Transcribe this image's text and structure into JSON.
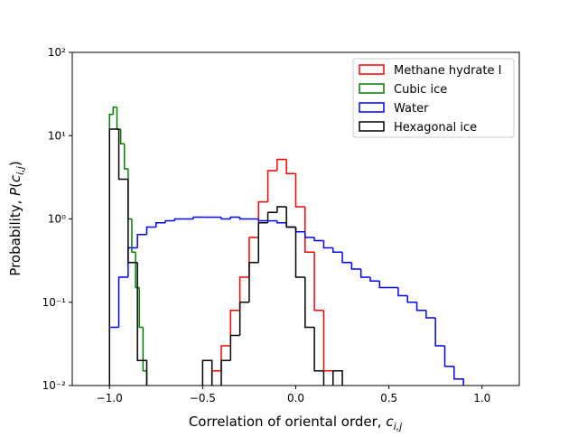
{
  "chart_data": {
    "type": "histogram",
    "histtype": "step",
    "xlabel": "Correlation of oriental order, ",
    "xlabel_var": "c",
    "xlabel_sub": "i,j",
    "ylabel": "Probability, ",
    "ylabel_var": "P",
    "ylabel_open": "(",
    "ylabel_var2": "c",
    "ylabel_sub": "i,j",
    "ylabel_close": ")",
    "yscale": "log",
    "xlim": [
      -1.2,
      1.2
    ],
    "ylim": [
      0.01,
      100
    ],
    "xticks": [
      {
        "value": -1.0,
        "label": "−1.0"
      },
      {
        "value": -0.5,
        "label": "−0.5"
      },
      {
        "value": 0.0,
        "label": "0.0"
      },
      {
        "value": 0.5,
        "label": "0.5"
      },
      {
        "value": 1.0,
        "label": "1.0"
      }
    ],
    "yticks": [
      {
        "value": 0.01,
        "label": "10⁻²"
      },
      {
        "value": 0.1,
        "label": "10⁻¹"
      },
      {
        "value": 1,
        "label": "10⁰"
      },
      {
        "value": 10,
        "label": "10¹"
      },
      {
        "value": 100,
        "label": "10²"
      }
    ],
    "legend": "upper right",
    "series": [
      {
        "name": "Methane hydrate I",
        "color": "#ff0000",
        "bins": [
          -0.45,
          -0.4,
          -0.35,
          -0.3,
          -0.25,
          -0.2,
          -0.15,
          -0.1,
          -0.05,
          0.0,
          0.05,
          0.1,
          0.15,
          0.2
        ],
        "values": [
          0.015,
          0.03,
          0.08,
          0.2,
          0.6,
          1.6,
          3.8,
          5.2,
          3.5,
          1.4,
          0.4,
          0.08,
          0.015
        ]
      },
      {
        "name": "Cubic ice",
        "color": "#008000",
        "bins": [
          -1.0,
          -0.98,
          -0.96,
          -0.94,
          -0.92,
          -0.9,
          -0.88,
          -0.86,
          -0.84,
          -0.82,
          -0.8
        ],
        "values": [
          18,
          22,
          12,
          8,
          4,
          1.0,
          0.4,
          0.15,
          0.05,
          0.015
        ]
      },
      {
        "name": "Water",
        "color": "#0000ff",
        "bins": [
          -1.0,
          -0.95,
          -0.9,
          -0.85,
          -0.8,
          -0.75,
          -0.7,
          -0.65,
          -0.6,
          -0.55,
          -0.5,
          -0.45,
          -0.4,
          -0.35,
          -0.3,
          -0.25,
          -0.2,
          -0.15,
          -0.1,
          -0.05,
          0.0,
          0.05,
          0.1,
          0.15,
          0.2,
          0.25,
          0.3,
          0.35,
          0.4,
          0.45,
          0.5,
          0.55,
          0.6,
          0.65,
          0.7,
          0.75,
          0.8,
          0.85,
          0.9
        ],
        "values": [
          0.05,
          0.2,
          0.45,
          0.65,
          0.8,
          0.9,
          0.95,
          1.0,
          1.0,
          1.05,
          1.05,
          1.05,
          1.0,
          1.05,
          1.0,
          1.0,
          0.95,
          0.95,
          0.9,
          0.8,
          0.7,
          0.6,
          0.55,
          0.45,
          0.4,
          0.3,
          0.25,
          0.2,
          0.18,
          0.15,
          0.15,
          0.12,
          0.1,
          0.08,
          0.065,
          0.03,
          0.017,
          0.012
        ]
      },
      {
        "name": "Hexagonal ice",
        "color": "#000000",
        "bins": [
          -1.0,
          -0.95,
          -0.9,
          -0.85,
          -0.8,
          -0.75,
          -0.7,
          -0.65,
          -0.6,
          -0.55,
          -0.5,
          -0.45,
          -0.4,
          -0.35,
          -0.3,
          -0.25,
          -0.2,
          -0.15,
          -0.1,
          -0.05,
          0.0,
          0.05,
          0.1,
          0.15,
          0.2,
          0.25
        ],
        "values": [
          12,
          3,
          0.3,
          0.02,
          null,
          null,
          null,
          null,
          null,
          null,
          0.02,
          null,
          0.02,
          0.04,
          0.1,
          0.3,
          0.9,
          1.2,
          1.4,
          0.8,
          0.2,
          0.05,
          0.015,
          null,
          0.015
        ]
      }
    ]
  }
}
